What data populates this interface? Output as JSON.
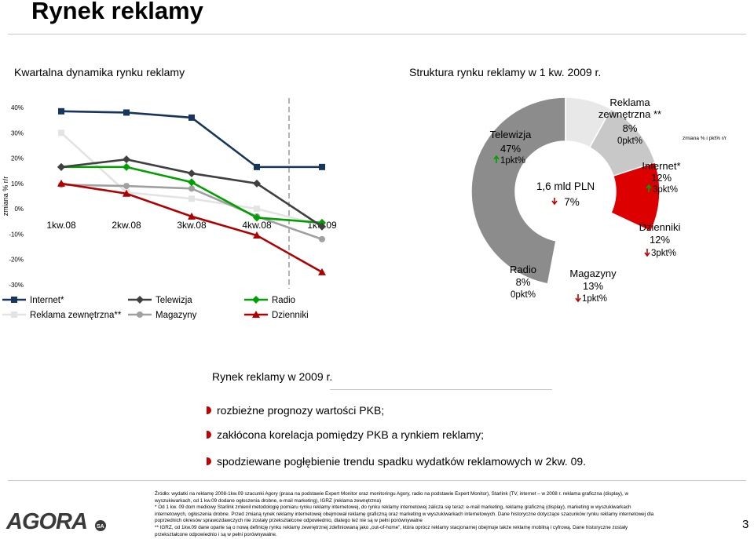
{
  "page": {
    "title": "Rynek reklamy",
    "page_number": "3"
  },
  "left_panel": {
    "heading": "Kwartalna dynamika rynku reklamy"
  },
  "right_panel": {
    "heading": "Struktura rynku reklamy w 1 kw. 2009 r."
  },
  "chart_data": [
    {
      "type": "line",
      "ylabel": "zmiana % r/r",
      "ylim": [
        -30,
        40
      ],
      "yticks": [
        "40%",
        "30%",
        "20%",
        "10%",
        "0%",
        "-10%",
        "-20%",
        "-30%"
      ],
      "ytick_values": [
        40,
        30,
        20,
        10,
        0,
        -10,
        -20,
        -30
      ],
      "categories": [
        "1kw.08",
        "2kw.08",
        "3kw.08",
        "4kw.08",
        "1kw.09"
      ],
      "grid": false,
      "legend_position": "bottom",
      "series": [
        {
          "name": "Internet*",
          "color": "#17365d",
          "marker": "square",
          "values": [
            38.5,
            38,
            36,
            16.5,
            16.5
          ]
        },
        {
          "name": "Telewizja",
          "color": "#404040",
          "marker": "diamond",
          "values": [
            16.5,
            19.5,
            14,
            10,
            -7
          ]
        },
        {
          "name": "Radio",
          "color": "#00a000",
          "marker": "diamond",
          "values": [
            16.5,
            16.5,
            10.5,
            -3.5,
            -5.5
          ]
        },
        {
          "name": "Reklama zewnętrzna**",
          "color": "#e3e3e3",
          "marker": "square",
          "values": [
            30,
            6.5,
            4,
            0,
            -6.5
          ]
        },
        {
          "name": "Magazyny",
          "color": "#a0a0a0",
          "marker": "circle",
          "values": [
            9.5,
            9,
            8,
            -3,
            -12
          ]
        },
        {
          "name": "Dzienniki",
          "color": "#b00000",
          "marker": "triangle",
          "values": [
            10,
            6,
            -3,
            -10.5,
            -25
          ]
        }
      ]
    },
    {
      "type": "pie",
      "center_label": "1,6 mld PLN",
      "center_change": "7%",
      "center_direction": "down",
      "side_note": "zmiana % i pkt% r/r",
      "slices": [
        {
          "name": "Telewizja",
          "share": 47,
          "share_label": "47%",
          "change": "1pkt%",
          "direction": "up",
          "color": "#8c8c8c"
        },
        {
          "name": "Reklama zewnętrzna **",
          "share": 8,
          "share_label": "8%",
          "change": "0pkt%",
          "direction": "none",
          "color": "#e8e8e8"
        },
        {
          "name": "Internet*",
          "share": 12,
          "share_label": "12%",
          "change": "3pkt%",
          "direction": "up",
          "color": "#c8c8c8"
        },
        {
          "name": "Dzienniki",
          "share": 12,
          "share_label": "12%",
          "change": "3pkt%",
          "direction": "down",
          "color": "#dd0000"
        },
        {
          "name": "Magazyny",
          "share": 13,
          "share_label": "13%",
          "change": "1pkt%",
          "direction": "down",
          "color": "#ffffff"
        },
        {
          "name": "Radio",
          "share": 8,
          "share_label": "8%",
          "change": "0pkt%",
          "direction": "none",
          "color": "#ffffff"
        }
      ]
    }
  ],
  "section": {
    "title": "Rynek reklamy w 2009 r.",
    "bullets": [
      "rozbieżne prognozy wartości PKB;",
      "zakłócona korelacja pomiędzy PKB a rynkiem reklamy;",
      "spodziewane pogłębienie trendu spadku wydatków reklamowych w 2kw. 09."
    ],
    "bullet_color": "#c00000"
  },
  "footnotes": [
    "Źródło: wydatki na reklamę 2008-1kw.09 szacunki Agory (prasa na podstawie Expert Monitor oraz monitoringu Agory, radio na podstawie Expert Monitor), Starlink (TV, internet – w 2008 r. reklama graficzna (display), w wyszukiwarkach, od 1 kw.09 dodane ogłoszenia drobne, e-mail marketing), IGRZ (reklama zewnętrzna)",
    "* Od 1 kw. 09 dom mediowy Starlink zmienił metodologię pomiaru rynku reklamy internetowej, do rynku reklamy internetowej zalicza się teraz: e-mail marketing, reklamę graficzną (display), marketing w wyszukiwarkach internetowych, ogłoszenia drobne. Przed zmianą rynek reklamy internetowej obejmował reklamę graficzną oraz marketing w wyszukiwarkach internetowych. Dane historyczne dotyczące szacunków rynku reklamy internetowej dla poprzednich okresów sprawozdawczych nie zostały przekształcone odpowiednio, dlatego też nie są w pełni porównywalne",
    "** IGRZ, od 1kw.09 dane oparte są o nową definicję rynku reklamy zewnętrznej zdefiniowaną jako „out-of-home\", która oprócz reklamy stacjonarnej obejmuje także reklamę mobilną i cyfrową. Dane historyczne zostały przekształcone odpowiednio i są w pełni porównywalne."
  ],
  "logo": {
    "text": "AGORA",
    "suffix": "SA",
    "color": "#3a3a3a",
    "accent": "#c00000"
  }
}
